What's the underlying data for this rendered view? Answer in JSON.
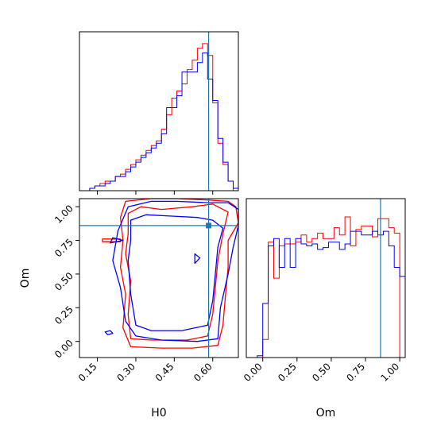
{
  "chart_data": {
    "type": "corner",
    "parameters": [
      "H0",
      "Om"
    ],
    "truth": {
      "H0": 0.584,
      "Om": 0.86
    },
    "colors": {
      "series_a": "#ff0000",
      "series_b": "#0000ff",
      "truth": "#1f77b4"
    },
    "panels": [
      {
        "id": "hist_H0",
        "type": "histogram",
        "xlim": [
          0.08,
          0.7
        ],
        "ylabel": "",
        "series": [
          {
            "color": "#ff0000",
            "x": [
              0.08,
              0.1,
              0.12,
              0.14,
              0.16,
              0.18,
              0.2,
              0.22,
              0.24,
              0.26,
              0.28,
              0.3,
              0.32,
              0.34,
              0.36,
              0.38,
              0.4,
              0.42,
              0.44,
              0.46,
              0.48,
              0.5,
              0.52,
              0.54,
              0.56,
              0.58,
              0.6,
              0.62,
              0.64,
              0.66,
              0.68,
              0.7
            ],
            "counts": [
              0,
              0,
              1,
              2,
              3,
              4,
              4,
              6,
              7,
              9,
              11,
              13,
              15,
              17,
              19,
              21,
              26,
              32,
              39,
              42,
              45,
              51,
              55,
              60,
              62,
              57,
              37,
              20,
              11,
              4,
              0
            ]
          },
          {
            "color": "#0000ff",
            "x": [
              0.08,
              0.1,
              0.12,
              0.14,
              0.16,
              0.18,
              0.2,
              0.22,
              0.24,
              0.26,
              0.28,
              0.3,
              0.32,
              0.34,
              0.36,
              0.38,
              0.4,
              0.42,
              0.44,
              0.46,
              0.48,
              0.5,
              0.52,
              0.54,
              0.56,
              0.58,
              0.6,
              0.62,
              0.64,
              0.66,
              0.68,
              0.7
            ],
            "counts": [
              0,
              0,
              1,
              2,
              2,
              3,
              4,
              6,
              6,
              8,
              10,
              12,
              14,
              16,
              18,
              20,
              24,
              35,
              35,
              40,
              50,
              50,
              50,
              54,
              58,
              47,
              38,
              22,
              12,
              4,
              1
            ]
          }
        ]
      },
      {
        "id": "hist_Om",
        "type": "histogram",
        "xlim": [
          -0.12,
          1.04
        ],
        "xlabel": "Om",
        "xticks": [
          "0.00",
          "0.25",
          "0.50",
          "0.75",
          "1.00"
        ],
        "series": [
          {
            "color": "#ff0000",
            "x": [
              0.0,
              0.04,
              0.08,
              0.12,
              0.16,
              0.2,
              0.24,
              0.28,
              0.32,
              0.36,
              0.4,
              0.44,
              0.48,
              0.52,
              0.56,
              0.6,
              0.64,
              0.68,
              0.72,
              0.76,
              0.8,
              0.84,
              0.88,
              0.92,
              0.96,
              1.0
            ],
            "counts": [
              10,
              64,
              44,
              62,
              63,
              63,
              64,
              68,
              64,
              66,
              69,
              66,
              66,
              72,
              68,
              78,
              62,
              71,
              73,
              73,
              67,
              77,
              77,
              72,
              69
            ]
          },
          {
            "color": "#0000ff",
            "x": [
              -0.08,
              -0.04,
              0.0,
              0.04,
              0.08,
              0.12,
              0.16,
              0.2,
              0.24,
              0.28,
              0.32,
              0.36,
              0.4,
              0.44,
              0.48,
              0.52,
              0.56,
              0.6,
              0.64,
              0.68,
              0.72,
              0.76,
              0.8,
              0.84,
              0.88,
              0.92,
              0.96,
              1.0,
              1.04
            ],
            "counts": [
              0,
              1,
              30,
              62,
              66,
              50,
              66,
              50,
              66,
              63,
              62,
              63,
              60,
              61,
              64,
              64,
              60,
              63,
              70,
              70,
              68,
              68,
              70,
              68,
              70,
              62,
              50,
              45,
              12
            ]
          }
        ]
      },
      {
        "id": "contour_H0_Om",
        "type": "contour",
        "xlim": [
          0.08,
          0.7
        ],
        "ylim": [
          -0.12,
          1.06
        ],
        "xlabel": "H0",
        "ylabel": "Om",
        "xticks": [
          "0.15",
          "0.30",
          "0.45",
          "0.60"
        ],
        "yticks": [
          "0.00",
          "0.25",
          "0.50",
          "0.75",
          "1.00"
        ],
        "series": [
          {
            "color": "#ff0000",
            "outer": [
              [
                0.26,
                1.04
              ],
              [
                0.36,
                1.06
              ],
              [
                0.46,
                1.06
              ],
              [
                0.58,
                1.05
              ],
              [
                0.66,
                1.04
              ],
              [
                0.69,
                1.0
              ],
              [
                0.7,
                0.88
              ],
              [
                0.66,
                0.75
              ],
              [
                0.66,
                0.55
              ],
              [
                0.65,
                0.35
              ],
              [
                0.64,
                0.12
              ],
              [
                0.62,
                -0.03
              ],
              [
                0.52,
                -0.05
              ],
              [
                0.4,
                -0.05
              ],
              [
                0.28,
                -0.04
              ],
              [
                0.25,
                0.1
              ],
              [
                0.26,
                0.35
              ],
              [
                0.24,
                0.55
              ],
              [
                0.25,
                0.75
              ],
              [
                0.24,
                0.92
              ],
              [
                0.26,
                1.04
              ]
            ],
            "inner": [
              [
                0.27,
                0.95
              ],
              [
                0.32,
                1.0
              ],
              [
                0.4,
                0.98
              ],
              [
                0.52,
                1.0
              ],
              [
                0.6,
                1.02
              ],
              [
                0.66,
                0.96
              ],
              [
                0.64,
                0.8
              ],
              [
                0.62,
                0.6
              ],
              [
                0.61,
                0.4
              ],
              [
                0.6,
                0.2
              ],
              [
                0.58,
                0.04
              ],
              [
                0.5,
                0.01
              ],
              [
                0.36,
                0.01
              ],
              [
                0.28,
                0.02
              ],
              [
                0.27,
                0.2
              ],
              [
                0.28,
                0.45
              ],
              [
                0.26,
                0.65
              ],
              [
                0.27,
                0.8
              ],
              [
                0.27,
                0.95
              ]
            ],
            "islands": [
              [
                [
                  0.17,
                  0.74
                ],
                [
                  0.24,
                  0.74
                ],
                [
                  0.24,
                  0.76
                ],
                [
                  0.17,
                  0.76
                ],
                [
                  0.17,
                  0.74
                ]
              ]
            ]
          },
          {
            "color": "#0000ff",
            "outer": [
              [
                0.27,
                1.0
              ],
              [
                0.36,
                1.04
              ],
              [
                0.46,
                1.04
              ],
              [
                0.58,
                1.03
              ],
              [
                0.66,
                1.03
              ],
              [
                0.7,
                0.98
              ],
              [
                0.7,
                0.86
              ],
              [
                0.68,
                0.7
              ],
              [
                0.66,
                0.5
              ],
              [
                0.63,
                0.25
              ],
              [
                0.62,
                0.02
              ],
              [
                0.54,
                0.0
              ],
              [
                0.4,
                0.01
              ],
              [
                0.3,
                0.04
              ],
              [
                0.26,
                0.15
              ],
              [
                0.24,
                0.4
              ],
              [
                0.21,
                0.6
              ],
              [
                0.23,
                0.82
              ],
              [
                0.27,
                1.0
              ]
            ],
            "inner": [
              [
                0.28,
                0.9
              ],
              [
                0.34,
                0.94
              ],
              [
                0.44,
                0.93
              ],
              [
                0.54,
                0.92
              ],
              [
                0.6,
                0.9
              ],
              [
                0.64,
                0.84
              ],
              [
                0.62,
                0.7
              ],
              [
                0.61,
                0.5
              ],
              [
                0.6,
                0.3
              ],
              [
                0.58,
                0.12
              ],
              [
                0.48,
                0.08
              ],
              [
                0.36,
                0.08
              ],
              [
                0.3,
                0.12
              ],
              [
                0.28,
                0.35
              ],
              [
                0.27,
                0.6
              ],
              [
                0.28,
                0.75
              ],
              [
                0.28,
                0.9
              ]
            ],
            "islands": [
              [
                [
                  0.19,
                  0.05
                ],
                [
                  0.21,
                  0.06
                ],
                [
                  0.2,
                  0.08
                ],
                [
                  0.18,
                  0.07
                ],
                [
                  0.19,
                  0.05
                ]
              ],
              [
                [
                  0.2,
                  0.73
                ],
                [
                  0.25,
                  0.75
                ],
                [
                  0.21,
                  0.77
                ],
                [
                  0.2,
                  0.73
                ]
              ],
              [
                [
                  0.53,
                  0.58
                ],
                [
                  0.55,
                  0.62
                ],
                [
                  0.53,
                  0.65
                ],
                [
                  0.53,
                  0.58
                ]
              ]
            ]
          }
        ]
      }
    ]
  }
}
